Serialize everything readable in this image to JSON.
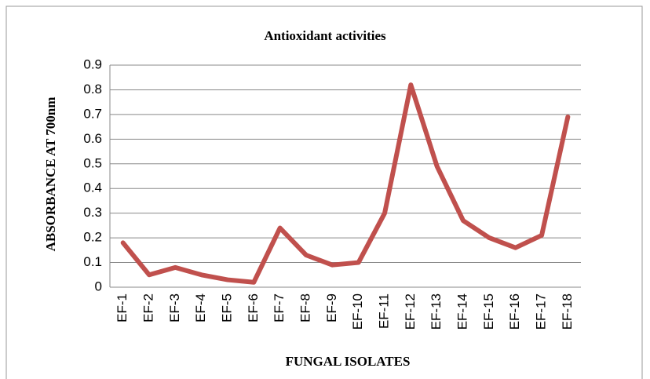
{
  "chart_data": {
    "type": "line",
    "title": "Antioxidant activities",
    "x_label": "FUNGAL ISOLATES",
    "y_label": "ABSORBANCE AT 700nm",
    "categories": [
      "EF-1",
      "EF-2",
      "EF-3",
      "EF-4",
      "EF-5",
      "EF-6",
      "EF-7",
      "EF-8",
      "EF-9",
      "EF-10",
      "EF-11",
      "EF-12",
      "EF-13",
      "EF-14",
      "EF-15",
      "EF-16",
      "EF-17",
      "EF-18"
    ],
    "series": [
      {
        "name": "Absorbance",
        "color": "#c0504d",
        "values": [
          0.18,
          0.05,
          0.08,
          0.05,
          0.03,
          0.02,
          0.24,
          0.13,
          0.09,
          0.1,
          0.3,
          0.82,
          0.49,
          0.27,
          0.2,
          0.16,
          0.21,
          0.69
        ]
      }
    ],
    "ylim": [
      0,
      0.9
    ],
    "yticks": [
      0,
      0.1,
      0.2,
      0.3,
      0.4,
      0.5,
      0.6,
      0.7,
      0.8,
      0.9
    ],
    "grid": true,
    "legend": false
  }
}
